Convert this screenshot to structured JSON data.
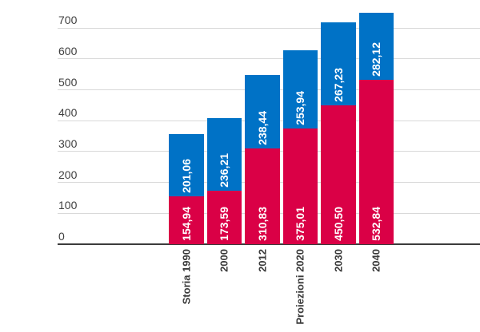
{
  "chart_data": {
    "type": "bar",
    "stacked": true,
    "title": "",
    "xlabel": "",
    "ylabel": "",
    "grid": true,
    "legend": "none",
    "ylim": [
      0,
      700
    ],
    "y_ticks": [
      0,
      100,
      200,
      300,
      400,
      500,
      600,
      700
    ],
    "categories": [
      "Storia 1990",
      "2000",
      "2012",
      "Proiezioni 2020",
      "2030",
      "2040"
    ],
    "series": [
      {
        "name": "",
        "color": "#da0046",
        "values": [
          154.94,
          173.59,
          310.83,
          375.01,
          450.5,
          532.84
        ],
        "labels": [
          "154,94",
          "173,59",
          "310,83",
          "375,01",
          "450,50",
          "532,84"
        ]
      },
      {
        "name": "",
        "color": "#0072c6",
        "values": [
          201.06,
          236.21,
          238.44,
          253.94,
          267.23,
          282.12
        ],
        "labels": [
          "201,06",
          "236,21",
          "238,44",
          "253,94",
          "267,23",
          "282,12"
        ]
      }
    ],
    "colors": {
      "gridline": "#d9d9d9",
      "axis_line": "#3c3c3c",
      "tick_text": "#3f3f3f",
      "category_text": "#3a3a3a",
      "value_text": "#ffffff"
    }
  }
}
